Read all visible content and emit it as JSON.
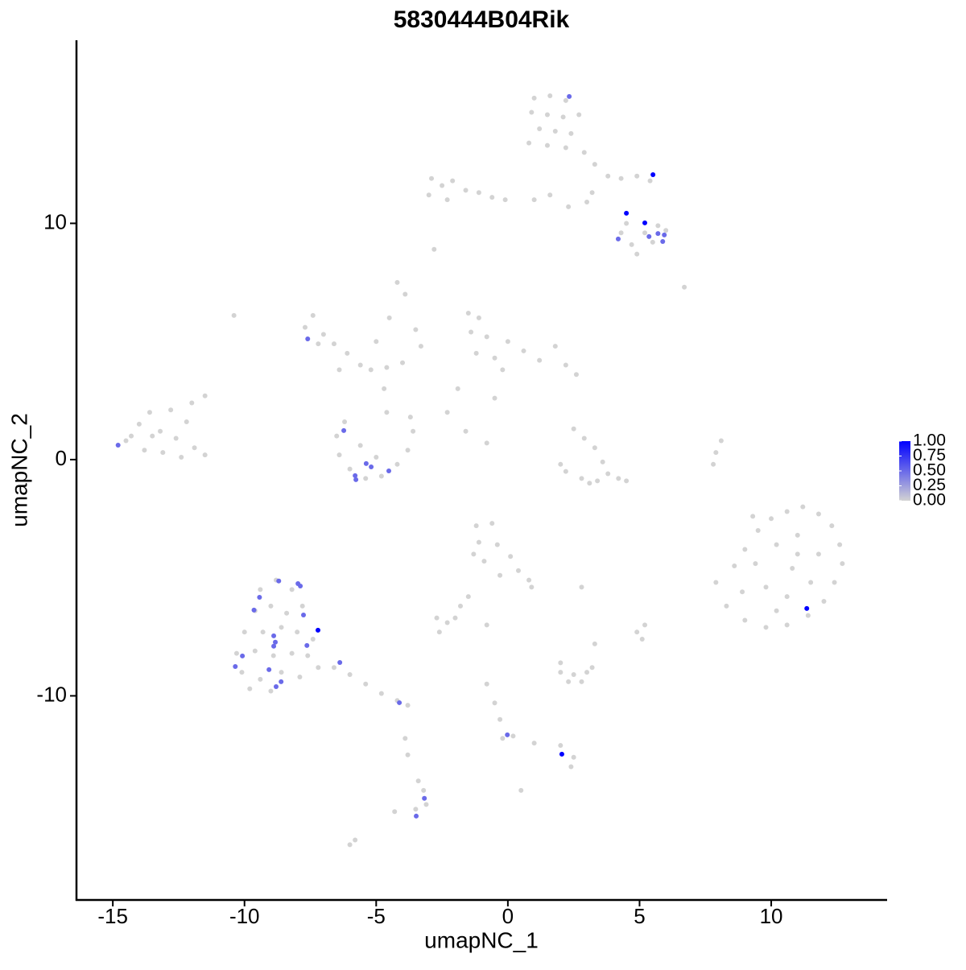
{
  "chart_data": {
    "type": "scatter",
    "title": "5830444B04Rik",
    "x_label": "umapNC_1",
    "y_label": "umapNC_2",
    "xlim": [
      -16.38,
      14.4
    ],
    "ylim": [
      -18.64,
      17.75
    ],
    "xticks": [
      -15,
      -10,
      -5,
      0,
      5,
      10
    ],
    "yticks": [
      -10,
      0,
      10
    ],
    "color_low": "#d3d3d3",
    "color_high": "#0000ff",
    "colorbar_lim": [
      0,
      1
    ],
    "colorbar_ticks": [
      {
        "value": 0,
        "label": "0.00"
      },
      {
        "value": 0.25,
        "label": "0.25"
      },
      {
        "value": 0.5,
        "label": "0.50"
      },
      {
        "value": 0.75,
        "label": "0.75"
      },
      {
        "value": 1,
        "label": "1.00"
      }
    ],
    "x": [
      1.0,
      1.6,
      2.2,
      0.9,
      1.5,
      2.1,
      2.7,
      1.2,
      1.8,
      2.4,
      0.8,
      1.5,
      2.2,
      2.9,
      3.3,
      3.8,
      4.3,
      4.9,
      5.4,
      3.2,
      3.0,
      -2.9,
      -2.5,
      -2.1,
      -1.6,
      -1.1,
      -0.6,
      -0.1,
      -3.0,
      -2.3,
      1.0,
      1.6,
      2.3,
      -2.8,
      4.3,
      4.7,
      5.2,
      5.7,
      6.0,
      4.9,
      5.5,
      4.5,
      6.7,
      -14.5,
      -14.0,
      -13.6,
      -13.2,
      -12.8,
      -12.6,
      -13.8,
      -13.1,
      -12.2,
      -11.9,
      -11.5,
      -12.0,
      -11.5,
      -13.5,
      -12.4,
      -14.3,
      -7.7,
      -7.4,
      -7.0,
      -6.6,
      -6.1,
      -5.6,
      -5.2,
      -4.6,
      -4.0,
      -7.2,
      -6.4,
      -10.4,
      -5.0,
      -4.5,
      -3.9,
      -4.2,
      -3.5,
      -3.3,
      -6.5,
      -6.4,
      -6.0,
      -5.4,
      -4.8,
      -4.2,
      -3.8,
      -3.6,
      -5.6,
      -5.0,
      -4.6,
      -4.7,
      -6.2,
      -3.7,
      -1.5,
      -1.1,
      -1.4,
      -0.8,
      -1.2,
      -0.5,
      0.0,
      0.6,
      1.2,
      1.8,
      2.2,
      2.6,
      -0.2,
      -1.9,
      -2.3,
      -1.6,
      -0.8,
      -0.5,
      2.5,
      2.9,
      3.3,
      3.6,
      3.8,
      3.4,
      2.8,
      2.2,
      2.0,
      4.2,
      4.5,
      3.1,
      7.8,
      7.9,
      8.1,
      8.6,
      9.0,
      9.5,
      10.0,
      10.6,
      11.2,
      11.8,
      12.3,
      12.6,
      12.7,
      12.4,
      12.0,
      11.4,
      10.6,
      9.8,
      9.0,
      8.3,
      7.9,
      9.4,
      10.2,
      11.0,
      11.8,
      10.8,
      9.8,
      10.6,
      11.5,
      8.9,
      10.2,
      11.0,
      9.3,
      -1.2,
      -0.6,
      -1.1,
      -0.4,
      0.1,
      -0.9,
      0.4,
      0.8,
      -0.3,
      0.9,
      -1.3,
      -9.4,
      -8.8,
      -8.2,
      -9.6,
      -9.0,
      -8.4,
      -7.8,
      -10.0,
      -9.3,
      -8.6,
      -8.0,
      -7.4,
      -10.3,
      -9.6,
      -8.9,
      -8.2,
      -7.6,
      -10.1,
      -9.4,
      -8.6,
      -7.9,
      -9.8,
      -9.0,
      -7.2,
      -6.6,
      -6.0,
      -5.4,
      -4.8,
      -4.2,
      -3.8,
      -2.7,
      -2.3,
      -2.0,
      -2.6,
      -1.8,
      -1.5,
      2.0,
      2.5,
      3.0,
      3.2,
      2.3,
      2.8,
      2.0,
      4.9,
      5.1,
      5.2,
      3.3,
      2.8,
      -0.8,
      -0.8,
      -0.5,
      -0.3,
      -0.2,
      0.2,
      1.0,
      2.0,
      2.5,
      2.4,
      0.5,
      -3.4,
      -3.2,
      -3.5,
      -3.1,
      -4.3,
      -6.0,
      -5.8,
      -3.9,
      -3.8,
      2.33,
      5.51,
      4.5,
      5.2,
      5.36,
      4.19,
      5.7,
      5.88,
      5.94,
      -7.6,
      -14.8,
      -6.23,
      -5.38,
      -5.19,
      -5.8,
      -5.77,
      -4.52,
      -8.7,
      -7.97,
      -7.88,
      -9.43,
      -9.64,
      -7.76,
      -7.21,
      -8.89,
      -8.83,
      -8.89,
      -7.63,
      -10.08,
      -10.35,
      -9.07,
      -8.61,
      -8.8,
      -6.38,
      -4.12,
      11.35,
      -0.02,
      2.05,
      -3.17,
      -3.48
    ],
    "y": [
      15.3,
      15.4,
      15.2,
      14.7,
      14.6,
      14.5,
      14.6,
      14.0,
      13.9,
      13.8,
      13.4,
      13.3,
      13.2,
      13.0,
      12.5,
      12.0,
      11.9,
      12.0,
      11.8,
      11.3,
      10.9,
      11.9,
      11.6,
      11.8,
      11.4,
      11.3,
      11.1,
      11.0,
      11.2,
      11.0,
      11.0,
      11.2,
      10.7,
      8.9,
      9.6,
      9.1,
      9.6,
      9.9,
      9.7,
      8.7,
      9.2,
      10.0,
      7.3,
      0.8,
      1.5,
      2.0,
      1.2,
      2.1,
      0.9,
      0.4,
      0.3,
      1.6,
      0.5,
      0.2,
      2.4,
      2.7,
      1.0,
      0.1,
      1.0,
      5.6,
      6.1,
      5.3,
      4.9,
      4.5,
      4.0,
      3.8,
      3.9,
      4.1,
      4.9,
      3.8,
      6.1,
      5.0,
      6.0,
      7.0,
      7.5,
      5.5,
      4.8,
      1.0,
      0.2,
      -0.4,
      -0.8,
      -0.7,
      -0.2,
      0.4,
      1.2,
      0.6,
      0.1,
      2.0,
      3.0,
      1.6,
      1.8,
      6.2,
      6.0,
      5.4,
      5.2,
      4.5,
      4.3,
      5.0,
      4.6,
      4.2,
      4.8,
      4.0,
      3.6,
      3.8,
      3.0,
      2.0,
      1.2,
      0.7,
      2.6,
      1.3,
      0.9,
      0.5,
      -0.1,
      -0.6,
      -0.9,
      -0.8,
      -0.5,
      -0.2,
      -0.8,
      -0.9,
      -1.0,
      -0.2,
      0.3,
      0.8,
      -4.5,
      -3.8,
      -3.0,
      -2.5,
      -2.2,
      -2.0,
      -2.3,
      -2.8,
      -3.6,
      -4.4,
      -5.2,
      -6.0,
      -6.6,
      -7.0,
      -7.1,
      -6.8,
      -6.2,
      -5.2,
      -4.4,
      -3.6,
      -3.2,
      -4.0,
      -4.6,
      -5.4,
      -5.8,
      -5.2,
      -5.6,
      -6.4,
      -4.0,
      -2.4,
      -2.8,
      -2.7,
      -3.5,
      -3.6,
      -4.1,
      -4.3,
      -4.7,
      -5.1,
      -4.9,
      -5.4,
      -4.0,
      -5.5,
      -5.1,
      -5.5,
      -6.4,
      -6.2,
      -6.5,
      -6.2,
      -7.3,
      -7.3,
      -7.1,
      -7.3,
      -7.6,
      -8.2,
      -8.1,
      -8.3,
      -8.2,
      -8.3,
      -9.0,
      -9.3,
      -9.0,
      -9.2,
      -9.7,
      -9.8,
      -8.8,
      -8.8,
      -9.1,
      -9.5,
      -9.9,
      -10.2,
      -10.4,
      -6.7,
      -6.9,
      -6.7,
      -7.3,
      -6.2,
      -5.8,
      -9.0,
      -9.1,
      -9.0,
      -8.8,
      -9.4,
      -9.4,
      -8.6,
      -7.3,
      -7.6,
      -7.0,
      -7.8,
      -5.4,
      -7.0,
      -9.5,
      -10.3,
      -11.0,
      -11.8,
      -11.7,
      -12.0,
      -12.1,
      -12.6,
      -13.0,
      -14.0,
      -13.6,
      -14.0,
      -14.8,
      -14.6,
      -14.9,
      -16.3,
      -16.1,
      -11.8,
      -12.5,
      15.37,
      12.06,
      10.43,
      10.02,
      9.44,
      9.34,
      9.57,
      9.23,
      9.51,
      5.11,
      0.61,
      1.23,
      -0.17,
      -0.31,
      -0.68,
      -0.85,
      -0.48,
      -5.14,
      -5.25,
      -5.35,
      -5.83,
      -6.37,
      -6.58,
      -7.22,
      -7.46,
      -7.73,
      -7.9,
      -7.87,
      -8.31,
      -8.76,
      -8.89,
      -9.4,
      -9.61,
      -8.59,
      -10.29,
      -6.3,
      -11.65,
      -12.47,
      -14.34,
      -15.09
    ],
    "values": [
      0,
      0,
      0,
      0,
      0,
      0,
      0,
      0,
      0,
      0,
      0,
      0,
      0,
      0,
      0,
      0,
      0,
      0,
      0,
      0,
      0,
      0,
      0,
      0,
      0,
      0,
      0,
      0,
      0,
      0,
      0,
      0,
      0,
      0,
      0,
      0,
      0,
      0,
      0,
      0,
      0,
      0,
      0,
      0,
      0,
      0,
      0,
      0,
      0,
      0,
      0,
      0,
      0,
      0,
      0,
      0,
      0,
      0,
      0,
      0,
      0,
      0,
      0,
      0,
      0,
      0,
      0,
      0,
      0,
      0,
      0,
      0,
      0,
      0,
      0,
      0,
      0,
      0,
      0,
      0,
      0,
      0,
      0,
      0,
      0,
      0,
      0,
      0,
      0,
      0,
      0,
      0,
      0,
      0,
      0,
      0,
      0,
      0,
      0,
      0,
      0,
      0,
      0,
      0,
      0,
      0,
      0,
      0,
      0,
      0,
      0,
      0,
      0,
      0,
      0,
      0,
      0,
      0,
      0,
      0,
      0,
      0,
      0,
      0,
      0,
      0,
      0,
      0,
      0,
      0,
      0,
      0,
      0,
      0,
      0,
      0,
      0,
      0,
      0,
      0,
      0,
      0,
      0,
      0,
      0,
      0,
      0,
      0,
      0,
      0,
      0,
      0,
      0,
      0,
      0,
      0,
      0,
      0,
      0,
      0,
      0,
      0,
      0,
      0,
      0,
      0,
      0,
      0,
      0,
      0,
      0,
      0,
      0,
      0,
      0,
      0,
      0,
      0,
      0,
      0,
      0,
      0,
      0,
      0,
      0,
      0,
      0,
      0,
      0,
      0,
      0,
      0,
      0,
      0,
      0,
      0,
      0,
      0,
      0,
      0,
      0,
      0,
      0,
      0,
      0,
      0,
      0,
      0,
      0,
      0,
      0,
      0,
      0,
      0,
      0,
      0,
      0,
      0,
      0,
      0,
      0,
      0,
      0,
      0,
      0,
      0,
      0,
      0,
      0,
      0,
      0,
      0,
      0,
      0.5,
      1,
      1,
      1,
      0.5,
      0.5,
      0.5,
      0.5,
      0.5,
      0.5,
      0.5,
      0.5,
      0.5,
      0.5,
      0.5,
      0.5,
      0.5,
      0.5,
      0.5,
      0.5,
      0.5,
      0.5,
      0.5,
      1,
      0.5,
      0.5,
      0.5,
      0.5,
      0.5,
      0.5,
      0.5,
      0.5,
      0.5,
      0.5,
      0.5,
      1,
      0.5,
      1,
      0.5,
      0.5
    ]
  }
}
